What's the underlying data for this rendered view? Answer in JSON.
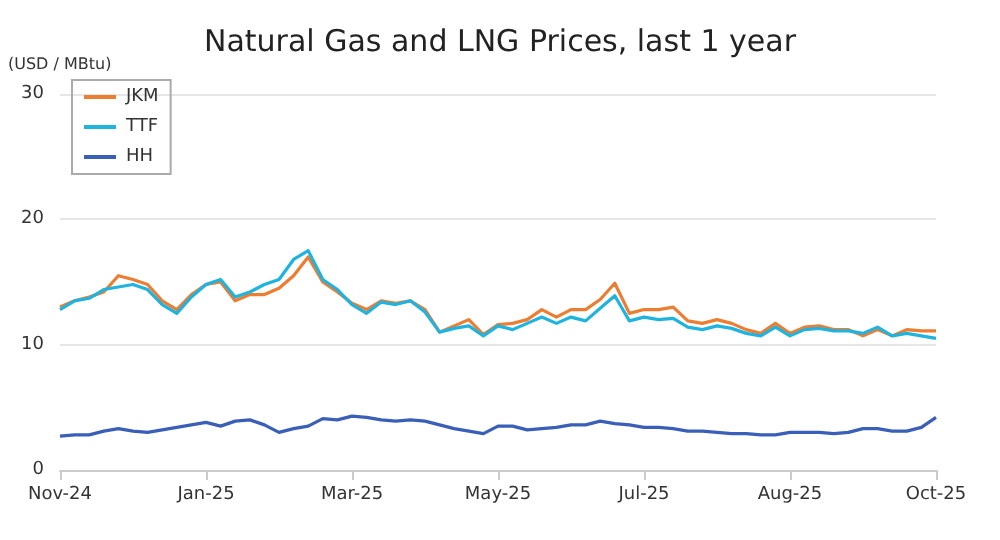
{
  "chart_data": {
    "type": "line",
    "title": "Natural Gas and LNG Prices, last 1 year",
    "ylabel": "(USD / MBtu)",
    "categories": [
      "Nov-24",
      null,
      null,
      null,
      null,
      null,
      null,
      null,
      null,
      null,
      "Jan-25",
      null,
      null,
      null,
      null,
      null,
      null,
      null,
      null,
      null,
      "Mar-25",
      null,
      null,
      null,
      null,
      null,
      null,
      null,
      null,
      null,
      "May-25",
      null,
      null,
      null,
      null,
      null,
      null,
      null,
      null,
      null,
      "Jul-25",
      null,
      null,
      null,
      null,
      null,
      null,
      null,
      null,
      null,
      "Aug-25",
      null,
      null,
      null,
      null,
      null,
      null,
      null,
      null,
      null,
      "Oct-25"
    ],
    "series": [
      {
        "name": "JKM",
        "color": "#ed7d31",
        "values": [
          13,
          13.5,
          13.8,
          14.2,
          15.5,
          15.2,
          14.8,
          13.5,
          12.8,
          14,
          14.8,
          15,
          13.5,
          14,
          14,
          14.5,
          15.5,
          17,
          15,
          14.2,
          13.3,
          12.8,
          13.5,
          13.3,
          13.5,
          12.8,
          11,
          11.5,
          12,
          10.8,
          11.6,
          11.7,
          12,
          12.8,
          12.2,
          12.8,
          12.8,
          13.6,
          14.9,
          12.5,
          12.8,
          12.8,
          13,
          11.9,
          11.7,
          12,
          11.7,
          11.2,
          10.9,
          11.7,
          10.9,
          11.4,
          11.5,
          11.2,
          11.2,
          10.7,
          11.2,
          10.7,
          11.2,
          11.1,
          11.1
        ]
      },
      {
        "name": "TTF",
        "color": "#1fb4e0",
        "values": [
          12.8,
          13.5,
          13.7,
          14.4,
          14.6,
          14.8,
          14.4,
          13.2,
          12.5,
          13.8,
          14.8,
          15.2,
          13.8,
          14.2,
          14.8,
          15.2,
          16.8,
          17.5,
          15.2,
          14.4,
          13.2,
          12.5,
          13.4,
          13.2,
          13.5,
          12.6,
          11,
          11.3,
          11.5,
          10.7,
          11.5,
          11.2,
          11.7,
          12.2,
          11.7,
          12.2,
          11.9,
          12.9,
          13.9,
          11.9,
          12.2,
          12,
          12.1,
          11.4,
          11.2,
          11.5,
          11.3,
          10.9,
          10.7,
          11.4,
          10.7,
          11.2,
          11.3,
          11.1,
          11.1,
          10.9,
          11.4,
          10.7,
          10.9,
          10.7,
          10.5
        ]
      },
      {
        "name": "HH",
        "color": "#3a5fb8",
        "values": [
          2.7,
          2.8,
          2.8,
          3.1,
          3.3,
          3.1,
          3,
          3.2,
          3.4,
          3.6,
          3.8,
          3.5,
          3.9,
          4,
          3.6,
          3,
          3.3,
          3.5,
          4.1,
          4,
          4.3,
          4.2,
          4,
          3.9,
          4,
          3.9,
          3.6,
          3.3,
          3.1,
          2.9,
          3.5,
          3.5,
          3.2,
          3.3,
          3.4,
          3.6,
          3.6,
          3.9,
          3.7,
          3.6,
          3.4,
          3.4,
          3.3,
          3.1,
          3.1,
          3,
          2.9,
          2.9,
          2.8,
          2.8,
          3,
          3,
          3,
          2.9,
          3,
          3.3,
          3.3,
          3.1,
          3.1,
          3.4,
          4.2
        ]
      }
    ],
    "ylim": [
      0,
      30
    ],
    "yticks": [
      0,
      10,
      20,
      30
    ],
    "grid": "y",
    "legend": "top left",
    "marker": "none",
    "line_style": "solid"
  }
}
